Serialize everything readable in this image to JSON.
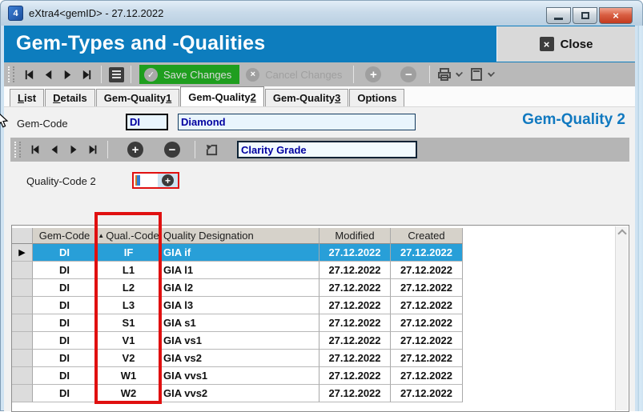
{
  "window": {
    "title": "eXtra4<gemID>  -  27.12.2022"
  },
  "header": {
    "title": "Gem-Types and -Qualities",
    "close_label": "Close"
  },
  "toolbar": {
    "save_label": "Save Changes",
    "cancel_label": "Cancel Changes"
  },
  "tabs": [
    {
      "label": "List",
      "underline_index": 0,
      "active": false
    },
    {
      "label": "Details",
      "underline_index": 0,
      "active": false
    },
    {
      "label": "Gem-Quality 1",
      "underline_index": 12,
      "active": false
    },
    {
      "label": "Gem-Quality 2",
      "underline_index": 12,
      "active": true
    },
    {
      "label": "Gem-Quality 3",
      "underline_index": 12,
      "active": false
    },
    {
      "label": "Options",
      "underline_index": null,
      "active": false
    }
  ],
  "form": {
    "gem_code_label": "Gem-Code",
    "gem_code_value": "DI",
    "gem_name_value": "Diamond",
    "section_title": "Gem-Quality 2",
    "filter_value": "Clarity Grade",
    "quality_code2_label": "Quality-Code 2",
    "quality_code2_value": ""
  },
  "table": {
    "columns": [
      "Gem-Code",
      "Qual.-Code",
      "Quality Designation",
      "Modified",
      "Created"
    ],
    "sorted_column": "Qual.-Code",
    "sort_direction": "asc",
    "rows": [
      {
        "gem": "DI",
        "qual": "IF",
        "designation": "GIA if",
        "modified": "27.12.2022",
        "created": "27.12.2022",
        "selected": true
      },
      {
        "gem": "DI",
        "qual": "L1",
        "designation": "GIA l1",
        "modified": "27.12.2022",
        "created": "27.12.2022",
        "selected": false
      },
      {
        "gem": "DI",
        "qual": "L2",
        "designation": "GIA l2",
        "modified": "27.12.2022",
        "created": "27.12.2022",
        "selected": false
      },
      {
        "gem": "DI",
        "qual": "L3",
        "designation": "GIA l3",
        "modified": "27.12.2022",
        "created": "27.12.2022",
        "selected": false
      },
      {
        "gem": "DI",
        "qual": "S1",
        "designation": "GIA s1",
        "modified": "27.12.2022",
        "created": "27.12.2022",
        "selected": false
      },
      {
        "gem": "DI",
        "qual": "V1",
        "designation": "GIA vs1",
        "modified": "27.12.2022",
        "created": "27.12.2022",
        "selected": false
      },
      {
        "gem": "DI",
        "qual": "V2",
        "designation": "GIA vs2",
        "modified": "27.12.2022",
        "created": "27.12.2022",
        "selected": false
      },
      {
        "gem": "DI",
        "qual": "W1",
        "designation": "GIA vvs1",
        "modified": "27.12.2022",
        "created": "27.12.2022",
        "selected": false
      },
      {
        "gem": "DI",
        "qual": "W2",
        "designation": "GIA vvs2",
        "modified": "27.12.2022",
        "created": "27.12.2022",
        "selected": false
      }
    ]
  },
  "icons": {
    "check": "✓",
    "cross": "×",
    "plus": "+",
    "minus": "−",
    "sort_asc": "▲",
    "row_marker": "▶",
    "app_mark": "4"
  },
  "colors": {
    "accent_blue": "#0d7dbe",
    "selected_row": "#289fd8",
    "save_green": "#1f9e1f",
    "highlight_red": "#e01010",
    "field_text": "#0000a0"
  }
}
